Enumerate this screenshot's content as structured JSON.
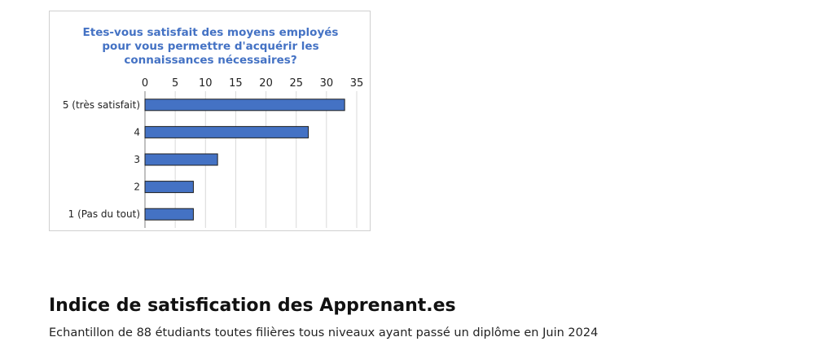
{
  "page": {
    "heading": "Indice de satisfication des Apprenant.es",
    "subtitle": "Echantillon de 88 étudiants toutes filières tous niveaux ayant passé un diplôme en Juin 2024"
  },
  "chart_data": {
    "type": "bar",
    "orientation": "horizontal",
    "title": "Etes-vous satisfait des moyens employés\npour vous permettre d'acquérir les\nconnaissances nécessaires?",
    "categories": [
      "5 (très satisfait)",
      "4",
      "3",
      "2",
      "1 (Pas du tout)"
    ],
    "values": [
      33,
      27,
      12,
      8,
      8
    ],
    "xlim": [
      0,
      35
    ],
    "xticks": [
      0,
      5,
      10,
      15,
      20,
      25,
      30,
      35
    ],
    "xaxis_position": "top",
    "grid": "vertical",
    "bar_color": "#4472c4",
    "title_color": "#4472c4"
  }
}
